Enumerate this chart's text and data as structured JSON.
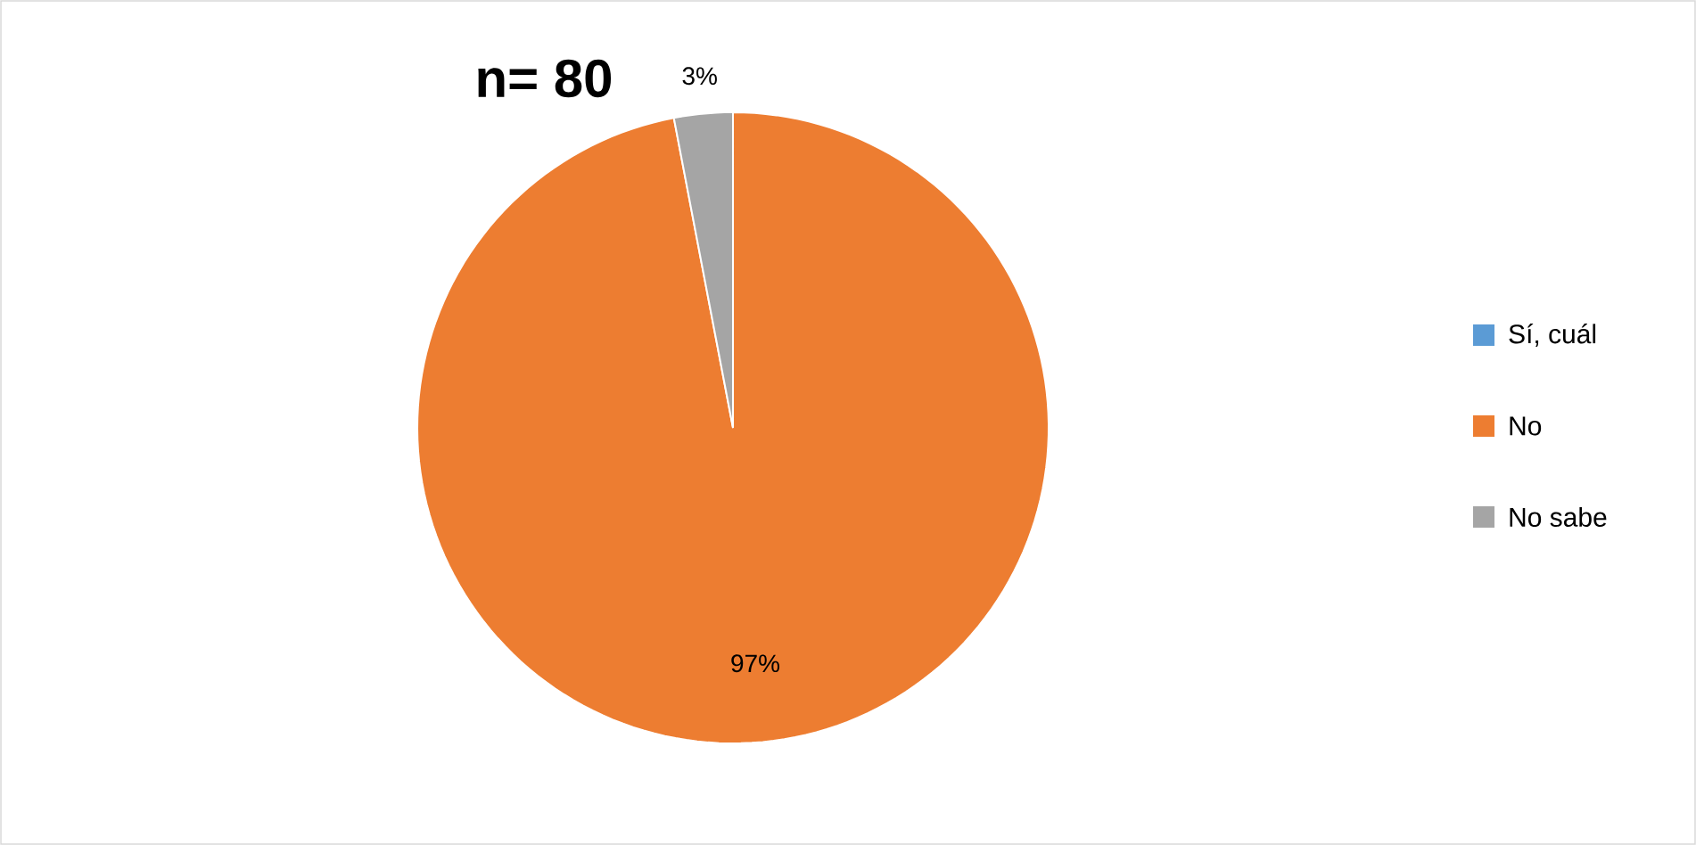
{
  "chart_data": {
    "type": "pie",
    "title": "n= 80",
    "categories": [
      "Sí, cuál",
      "No",
      "No sabe"
    ],
    "values": [
      0,
      97,
      3
    ],
    "colors": [
      "#5b9bd5",
      "#ed7d31",
      "#a5a5a5"
    ],
    "value_labels": [
      null,
      "97%",
      "3%"
    ],
    "legend": "right"
  }
}
